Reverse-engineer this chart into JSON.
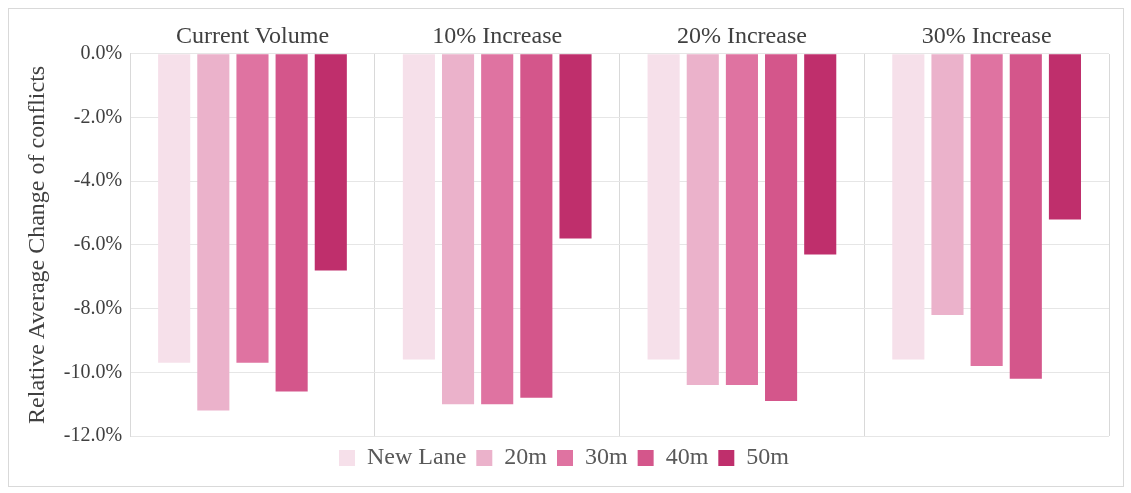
{
  "chart_data": {
    "type": "bar",
    "ylabel": "Relative Average Change of conflicts",
    "categories": [
      "Current Volume",
      "10% Increase",
      "20% Increase",
      "30% Increase"
    ],
    "series": [
      {
        "name": "New Lane",
        "color": "#f6e0ea",
        "values": [
          -9.7,
          -9.6,
          -9.6,
          -9.6
        ]
      },
      {
        "name": "20m",
        "color": "#ebb2cb",
        "values": [
          -11.2,
          -11.0,
          -10.4,
          -8.2
        ]
      },
      {
        "name": "30m",
        "color": "#df73a1",
        "values": [
          -9.7,
          -11.0,
          -10.4,
          -9.8
        ]
      },
      {
        "name": "40m",
        "color": "#d4568b",
        "values": [
          -10.6,
          -10.8,
          -10.9,
          -10.2
        ]
      },
      {
        "name": "50m",
        "color": "#bf2f6c",
        "values": [
          -6.8,
          -5.8,
          -6.3,
          -5.2
        ]
      }
    ],
    "ylim": [
      -12,
      0
    ],
    "yticks": [
      {
        "value": 0,
        "label": "0.0%"
      },
      {
        "value": -2,
        "label": "-2.0%"
      },
      {
        "value": -4,
        "label": "-4.0%"
      },
      {
        "value": -6,
        "label": "-6.0%"
      },
      {
        "value": -8,
        "label": "-8.0%"
      },
      {
        "value": -10,
        "label": "-10.0%"
      },
      {
        "value": -12,
        "label": "-12.0%"
      }
    ],
    "grid": true,
    "legend": "bottom"
  }
}
